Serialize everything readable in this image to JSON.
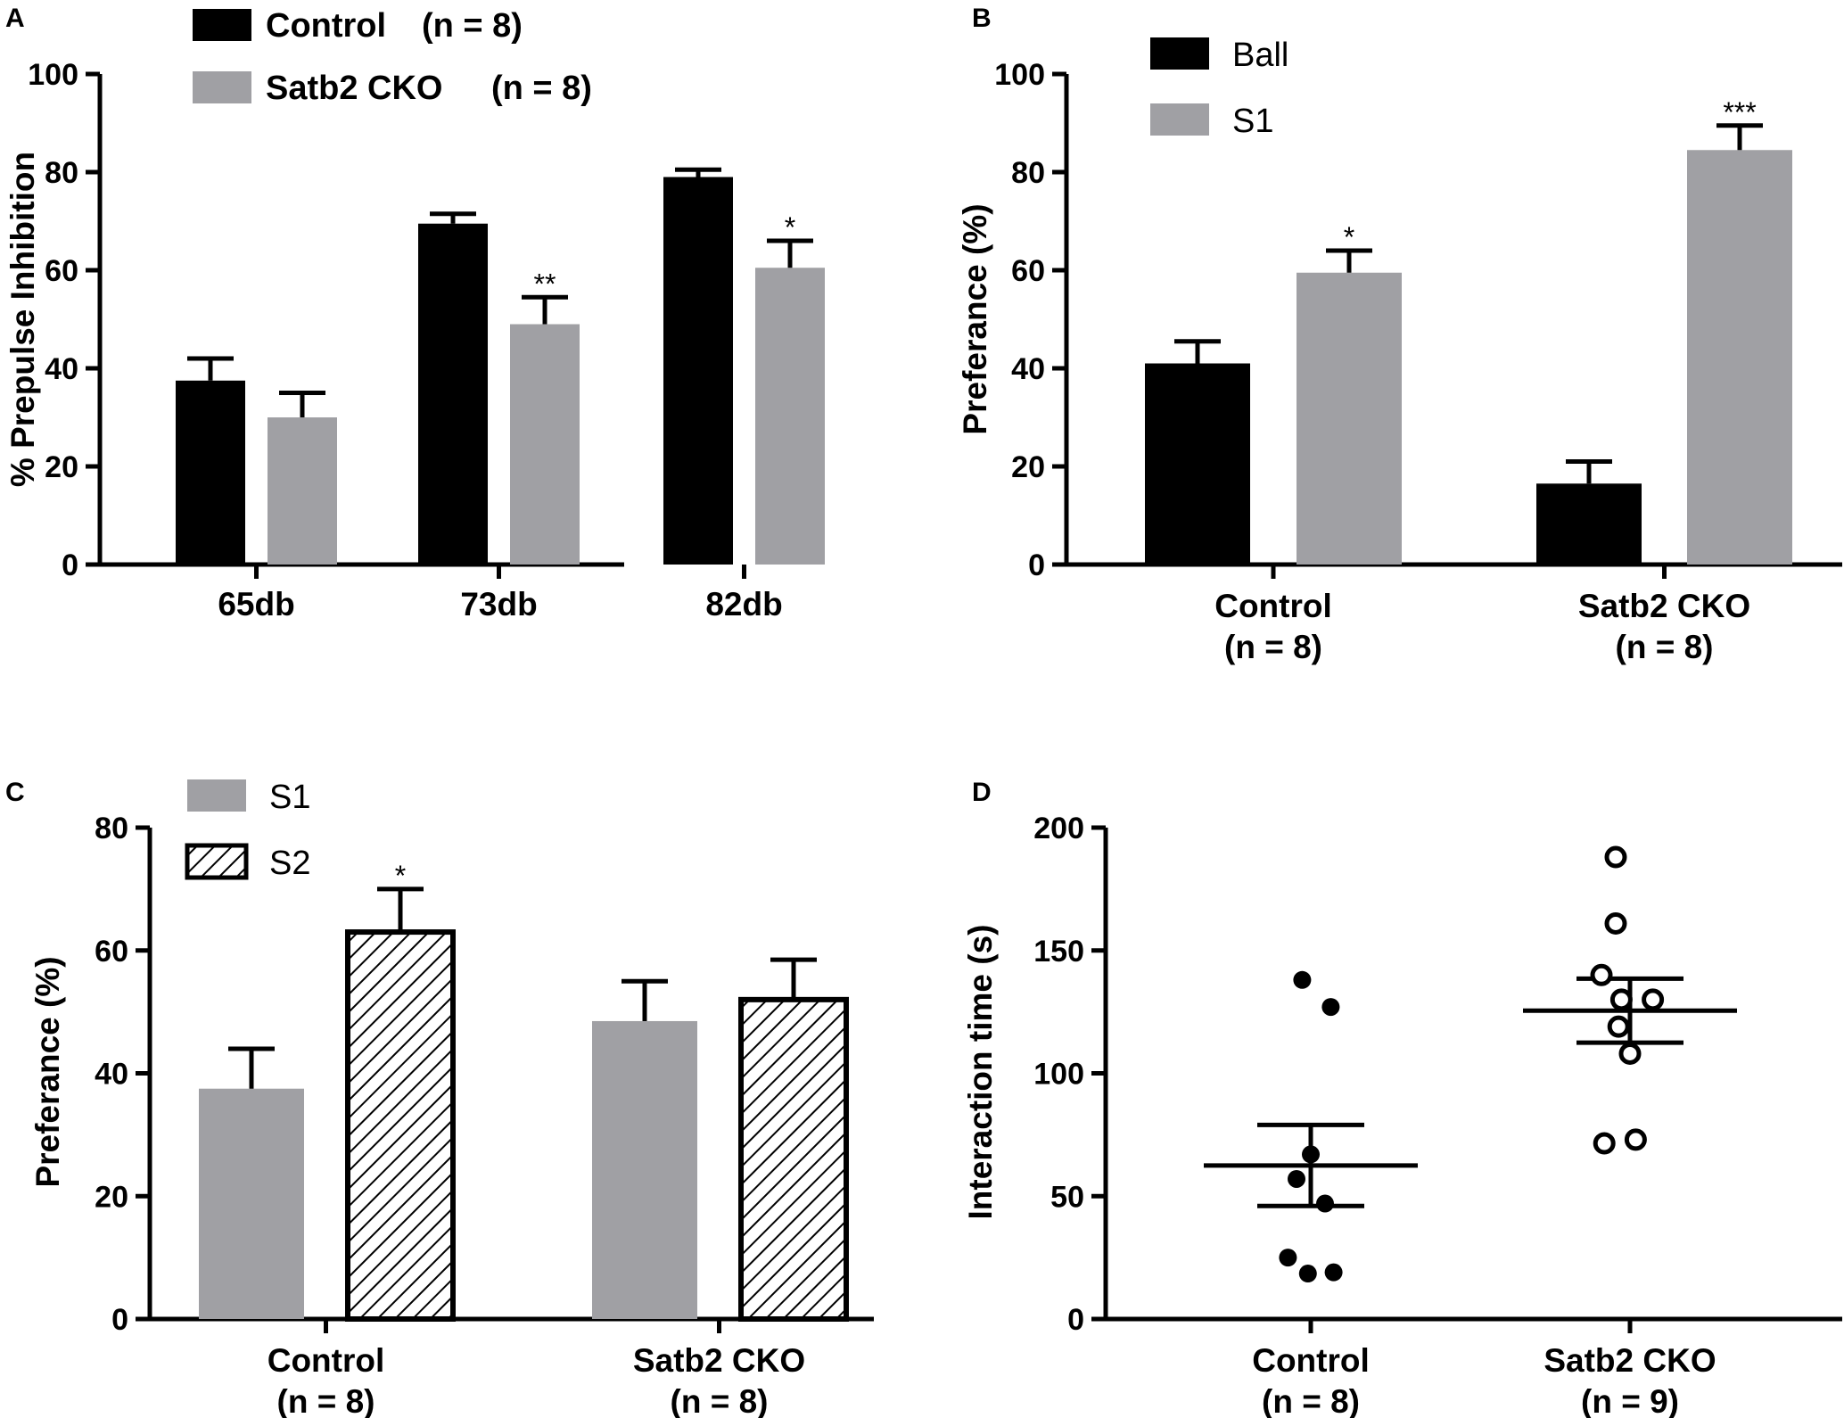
{
  "colors": {
    "black": "#000000",
    "gray": "#a0a0a4",
    "white": "#ffffff"
  },
  "chart_data": [
    {
      "panel": "A",
      "type": "bar",
      "title": "",
      "xlabel": "",
      "ylabel": "% Prepulse Inhibition",
      "ylim": [
        0,
        100
      ],
      "yticks": [
        "0",
        "20",
        "40",
        "60",
        "80",
        "100"
      ],
      "categories": [
        "65db",
        "73db",
        "82db"
      ],
      "legend_position": "top-left",
      "series": [
        {
          "name": "Control",
          "legend_n": "(n = 8)",
          "fill": "black",
          "values": [
            37.5,
            69.5,
            79
          ],
          "errors": [
            4.5,
            2,
            1.5
          ],
          "stars": [
            "",
            "",
            ""
          ]
        },
        {
          "name": "Satb2 CKO",
          "legend_n": "(n = 8)",
          "fill": "gray",
          "values": [
            30,
            49,
            60.5
          ],
          "errors": [
            5,
            5.5,
            5.5
          ],
          "stars": [
            "",
            "**",
            "*"
          ]
        }
      ]
    },
    {
      "panel": "B",
      "type": "bar",
      "title": "",
      "xlabel": "",
      "ylabel": "Preferance (%)",
      "ylim": [
        0,
        100
      ],
      "yticks": [
        "0",
        "20",
        "40",
        "60",
        "80",
        "100"
      ],
      "categories": [
        "Control",
        "Satb2 CKO"
      ],
      "category_sub": [
        "(n = 8)",
        "(n = 8)"
      ],
      "legend_position": "top-left",
      "series": [
        {
          "name": "Ball",
          "fill": "black",
          "values": [
            41,
            16.5
          ],
          "errors": [
            4.5,
            4.5
          ],
          "stars": [
            "",
            ""
          ]
        },
        {
          "name": "S1",
          "fill": "gray",
          "values": [
            59.5,
            84.5
          ],
          "errors": [
            4.5,
            5
          ],
          "stars": [
            "*",
            "***"
          ]
        }
      ]
    },
    {
      "panel": "C",
      "type": "bar",
      "title": "",
      "xlabel": "",
      "ylabel": "Preferance (%)",
      "ylim": [
        0,
        80
      ],
      "yticks": [
        "0",
        "20",
        "40",
        "60",
        "80"
      ],
      "categories": [
        "Control",
        "Satb2 CKO"
      ],
      "category_sub": [
        "(n = 8)",
        "(n = 8)"
      ],
      "legend_position": "top-left",
      "series": [
        {
          "name": "S1",
          "fill": "gray",
          "values": [
            37.5,
            48.5
          ],
          "errors": [
            6.5,
            6.5
          ],
          "stars": [
            "",
            ""
          ]
        },
        {
          "name": "S2",
          "fill": "hatch",
          "values": [
            63,
            52
          ],
          "errors": [
            7,
            6.5
          ],
          "stars": [
            "*",
            ""
          ]
        }
      ]
    },
    {
      "panel": "D",
      "type": "scatter",
      "title": "",
      "xlabel": "",
      "ylabel": "Interaction time (s)",
      "ylim": [
        0,
        200
      ],
      "yticks": [
        "0",
        "50",
        "100",
        "150",
        "200"
      ],
      "categories": [
        "Control",
        "Satb2 CKO"
      ],
      "category_sub": [
        "(n = 8)",
        "(n = 9)"
      ],
      "groups": [
        {
          "name": "Control",
          "marker": "filled",
          "mean": 62.5,
          "sem_low": 46,
          "sem_high": 79,
          "points": [
            [
              -0.03,
              138
            ],
            [
              0.07,
              127
            ],
            [
              0.0,
              67
            ],
            [
              -0.05,
              57
            ],
            [
              0.05,
              47
            ],
            [
              -0.08,
              25
            ],
            [
              -0.01,
              18.5
            ],
            [
              0.08,
              19
            ]
          ]
        },
        {
          "name": "Satb2 CKO",
          "marker": "open",
          "mean": 125.5,
          "sem_low": 112.5,
          "sem_high": 138.5,
          "points": [
            [
              -0.05,
              188
            ],
            [
              -0.05,
              161
            ],
            [
              -0.1,
              140
            ],
            [
              -0.03,
              130
            ],
            [
              0.08,
              130
            ],
            [
              -0.04,
              119
            ],
            [
              0.0,
              108
            ],
            [
              -0.09,
              71.5
            ],
            [
              0.02,
              73
            ]
          ]
        }
      ]
    }
  ]
}
